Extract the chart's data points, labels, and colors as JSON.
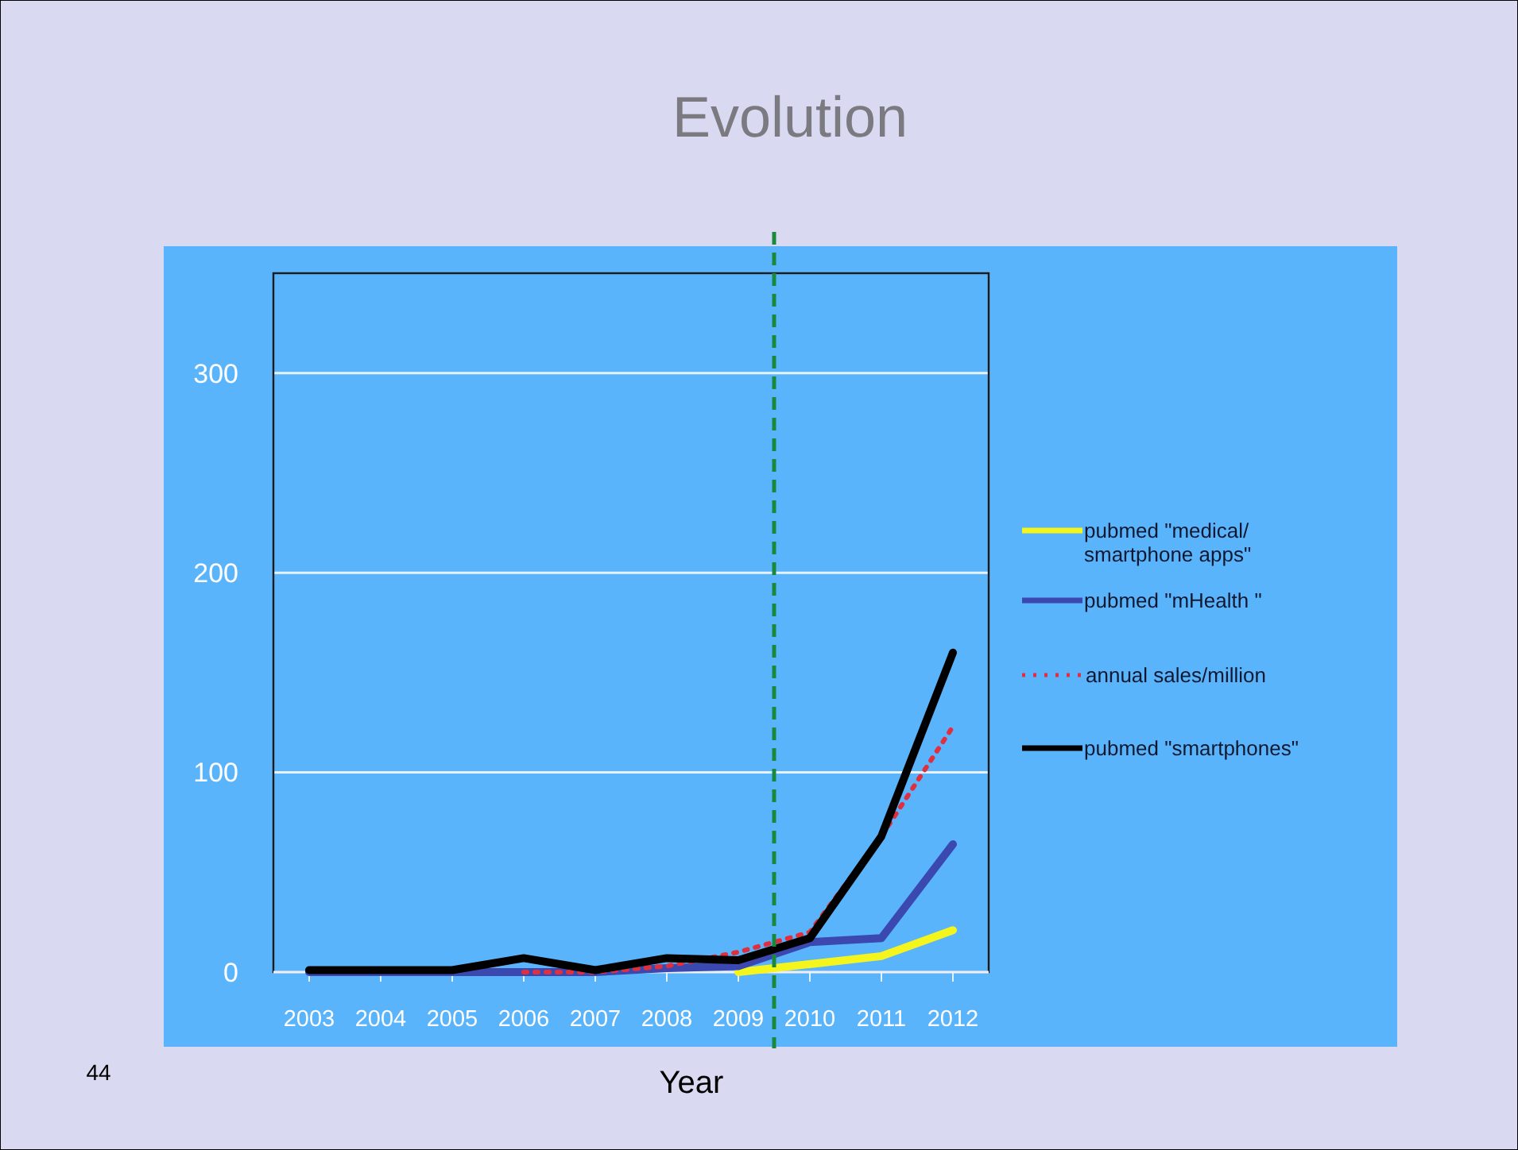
{
  "chart_data": {
    "type": "line",
    "title": "Evolution",
    "xlabel": "Year",
    "annotations": [
      "44"
    ],
    "x": [
      2003,
      2004,
      2005,
      2006,
      2007,
      2008,
      2009,
      2010,
      2011,
      2012
    ],
    "xlim": [
      2002.5,
      2012.5
    ],
    "xticks": [
      2003,
      2004,
      2005,
      2006,
      2007,
      2008,
      2009,
      2010,
      2011,
      2012
    ],
    "ylim": [
      0,
      350
    ],
    "yticks": [
      0,
      100,
      200,
      300
    ],
    "grid": "y",
    "legend": "right",
    "marker": "none",
    "ref_lines": [
      {
        "axis": "x",
        "value": 2009.5,
        "color": "#1a8a3a",
        "line_style": "dashed"
      }
    ],
    "series": [
      {
        "name": "pubmed \"medical/ smartphone apps\"",
        "color": "#f5f51e",
        "line_style": "solid",
        "values": [
          null,
          null,
          null,
          null,
          null,
          null,
          0,
          4,
          8,
          21
        ]
      },
      {
        "name": "pubmed \"mHealth \"",
        "color": "#3a48b0",
        "line_style": "solid",
        "values": [
          0,
          0,
          0,
          0,
          0,
          2,
          3,
          15,
          17,
          64
        ]
      },
      {
        "name": "annual sales/million",
        "color": "#e03040",
        "line_style": "dotted",
        "values": [
          null,
          null,
          null,
          0,
          0,
          3,
          10,
          20,
          68,
          123
        ]
      },
      {
        "name": "pubmed \"smartphones\"",
        "color": "#000000",
        "line_style": "solid",
        "values": [
          1,
          1,
          1,
          7,
          1,
          7,
          6,
          17,
          68,
          160
        ]
      }
    ]
  }
}
